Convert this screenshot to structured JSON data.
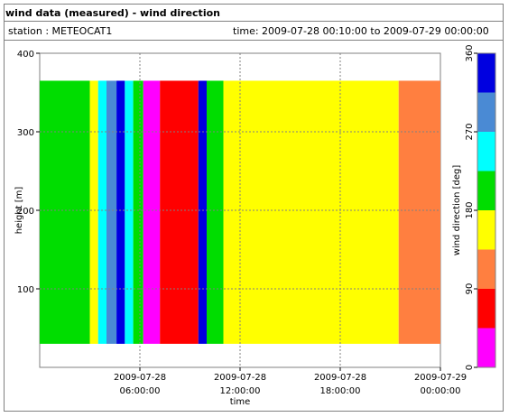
{
  "header": {
    "title": "wind data (measured) - wind direction",
    "station": "station : METEOCAT1",
    "time_range": "time: 2009-07-28 00:10:00 to 2009-07-29 00:00:00"
  },
  "chart_data": {
    "type": "heatmap",
    "xlabel": "time",
    "ylabel": "height [m]",
    "colorbar_label": "wind direction [deg]",
    "x_ticks": [
      {
        "hours": 6,
        "line1": "2009-07-28",
        "line2": "06:00:00"
      },
      {
        "hours": 12,
        "line1": "2009-07-28",
        "line2": "12:00:00"
      },
      {
        "hours": 18,
        "line1": "2009-07-28",
        "line2": "18:00:00"
      },
      {
        "hours": 24,
        "line1": "2009-07-29",
        "line2": "00:00:00"
      }
    ],
    "xlim_hours": [
      0,
      24
    ],
    "ylim": [
      0,
      400
    ],
    "y_ticks": [
      100,
      200,
      300,
      400
    ],
    "colorbar_ticks": [
      0,
      90,
      180,
      270,
      360
    ],
    "colorbar": [
      {
        "from": 0,
        "to": 45,
        "color": "#ff00ff"
      },
      {
        "from": 45,
        "to": 90,
        "color": "#ff0000"
      },
      {
        "from": 90,
        "to": 135,
        "color": "#ff7f40"
      },
      {
        "from": 135,
        "to": 180,
        "color": "#ffff00"
      },
      {
        "from": 180,
        "to": 225,
        "color": "#00dd00"
      },
      {
        "from": 225,
        "to": 270,
        "color": "#00ffff"
      },
      {
        "from": 270,
        "to": 315,
        "color": "#4a8ad4"
      },
      {
        "from": 315,
        "to": 360,
        "color": "#0000e0"
      }
    ],
    "height_range": [
      30,
      365
    ],
    "bands": [
      {
        "t0": 0.0,
        "t1": 0.6,
        "direction": 0,
        "top": 0
      },
      {
        "t0": 0.0,
        "t1": 3.0,
        "direction": 200,
        "top": 365
      },
      {
        "t0": 3.0,
        "t1": 3.5,
        "direction": 160,
        "top": 365
      },
      {
        "t0": 3.5,
        "t1": 4.0,
        "direction": 240,
        "top": 365
      },
      {
        "t0": 4.0,
        "t1": 4.6,
        "direction": 290,
        "top": 365
      },
      {
        "t0": 4.6,
        "t1": 5.1,
        "direction": 330,
        "top": 365
      },
      {
        "t0": 5.1,
        "t1": 5.6,
        "direction": 240,
        "top": 365
      },
      {
        "t0": 5.6,
        "t1": 6.2,
        "direction": 200,
        "top": 365
      },
      {
        "t0": 6.2,
        "t1": 7.2,
        "direction": 20,
        "top": 365
      },
      {
        "t0": 7.2,
        "t1": 9.5,
        "direction": 60,
        "top": 365
      },
      {
        "t0": 9.5,
        "t1": 10.0,
        "direction": 340,
        "top": 365
      },
      {
        "t0": 10.0,
        "t1": 11.0,
        "direction": 200,
        "top": 365
      },
      {
        "t0": 11.0,
        "t1": 21.5,
        "direction": 160,
        "top": 365
      },
      {
        "t0": 21.5,
        "t1": 24.0,
        "direction": 110,
        "top": 365
      }
    ]
  }
}
